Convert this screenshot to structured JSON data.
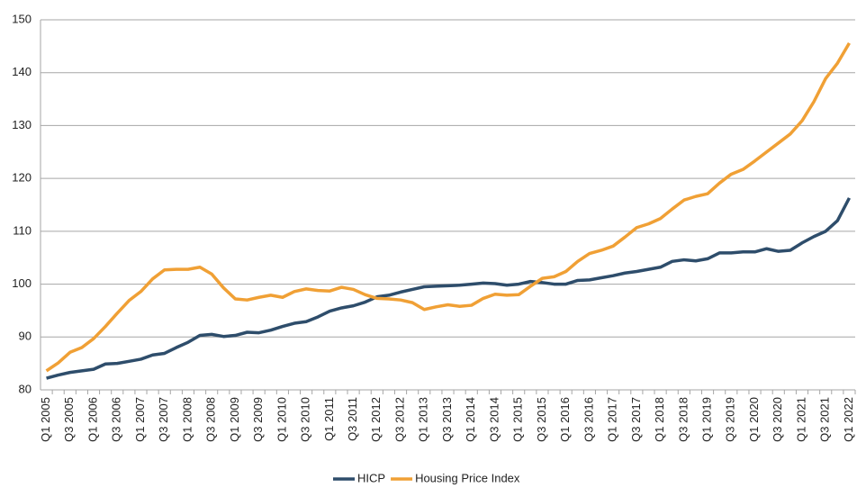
{
  "chart_data": {
    "type": "line",
    "categories": [
      "Q1 2005",
      null,
      "Q3 2005",
      null,
      "Q1 2006",
      null,
      "Q3 2006",
      null,
      "Q1 2007",
      null,
      "Q3 2007",
      null,
      "Q1 2008",
      null,
      "Q3 2008",
      null,
      "Q1 2009",
      null,
      "Q3 2009",
      null,
      "Q1 2010",
      null,
      "Q3 2010",
      null,
      "Q1 2011",
      null,
      "Q3 2011",
      null,
      "Q1 2012",
      null,
      "Q3 2012",
      null,
      "Q1 2013",
      null,
      "Q3 2013",
      null,
      "Q1 2014",
      null,
      "Q3 2014",
      null,
      "Q1 2015",
      null,
      "Q3 2015",
      null,
      "Q1 2016",
      null,
      "Q3 2016",
      null,
      "Q1 2017",
      null,
      "Q3 2017",
      null,
      "Q1 2018",
      null,
      "Q3 2018",
      null,
      "Q1 2019",
      null,
      "Q3 2019",
      null,
      "Q1 2020",
      null,
      "Q3 2020",
      null,
      "Q1 2021",
      null,
      "Q3 2021",
      null,
      "Q1 2022"
    ],
    "series": [
      {
        "name": "HICP",
        "color": "#2e4d6b",
        "values": [
          82.2,
          82.8,
          83.3,
          83.6,
          83.9,
          84.9,
          85.0,
          85.4,
          85.8,
          86.6,
          86.9,
          88.0,
          89.0,
          90.3,
          90.5,
          90.1,
          90.3,
          90.9,
          90.8,
          91.3,
          92.0,
          92.6,
          92.9,
          93.8,
          94.9,
          95.5,
          95.9,
          96.6,
          97.6,
          97.9,
          98.5,
          99.0,
          99.5,
          99.6,
          99.7,
          99.8,
          100.0,
          100.2,
          100.1,
          99.8,
          100.0,
          100.5,
          100.3,
          100.0,
          100.0,
          100.7,
          100.8,
          101.2,
          101.6,
          102.1,
          102.4,
          102.8,
          103.2,
          104.3,
          104.6,
          104.4,
          104.8,
          105.9,
          105.9,
          106.1,
          106.1,
          106.7,
          106.2,
          106.4,
          107.8,
          109.0,
          110.0,
          112.0,
          116.3
        ]
      },
      {
        "name": "Housing Price Index",
        "color": "#f0a035",
        "values": [
          83.6,
          85.1,
          87.1,
          88.0,
          89.7,
          92.0,
          94.5,
          96.9,
          98.6,
          101.0,
          102.7,
          102.8,
          102.8,
          103.2,
          101.9,
          99.3,
          97.2,
          97.0,
          97.5,
          97.9,
          97.5,
          98.6,
          99.1,
          98.8,
          98.7,
          99.4,
          99.0,
          98.0,
          97.3,
          97.2,
          97.0,
          96.5,
          95.2,
          95.7,
          96.1,
          95.8,
          96.0,
          97.3,
          98.1,
          97.9,
          98.0,
          99.6,
          101.1,
          101.4,
          102.4,
          104.3,
          105.8,
          106.4,
          107.2,
          108.9,
          110.7,
          111.4,
          112.4,
          114.2,
          115.9,
          116.6,
          117.1,
          119.1,
          120.8,
          121.7,
          123.3,
          125.0,
          126.7,
          128.4,
          130.9,
          134.5,
          138.9,
          141.8,
          145.6
        ]
      }
    ],
    "ylim": [
      80,
      150
    ],
    "yticks": [
      80,
      90,
      100,
      110,
      120,
      130,
      140,
      150
    ],
    "grid": true
  }
}
